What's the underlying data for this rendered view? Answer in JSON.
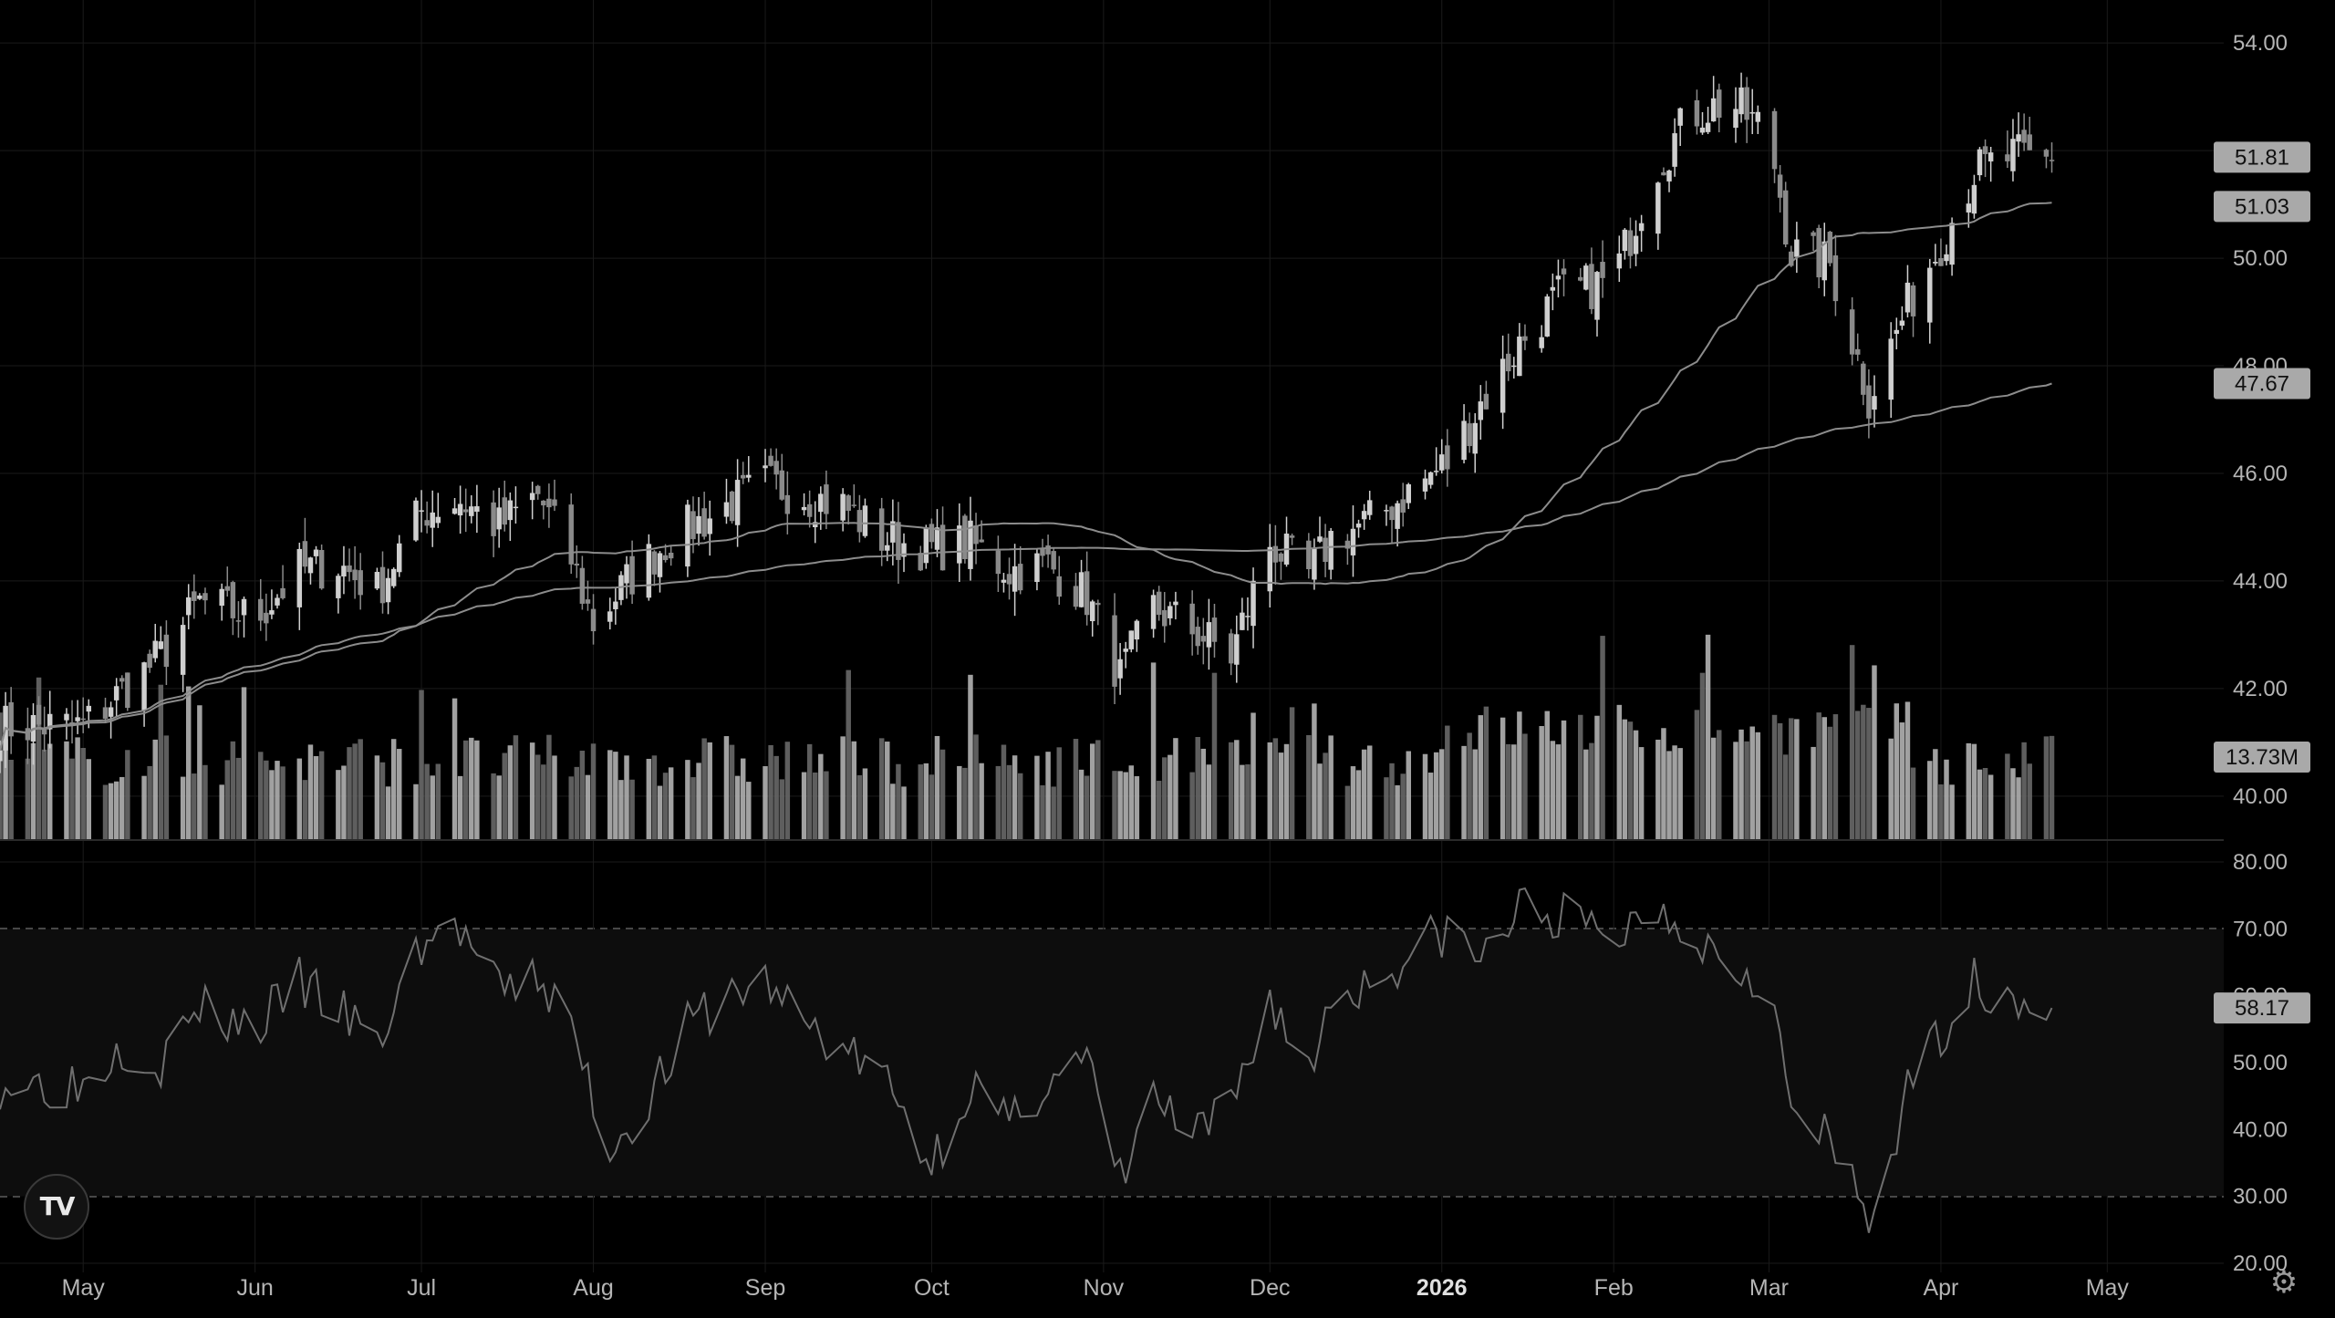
{
  "chart_data": [
    {
      "type": "candlestick",
      "title": "",
      "xlabel": "",
      "ylabel": "",
      "grid": true,
      "theme": "dark",
      "x_ticks": [
        "May",
        "Jun",
        "Jul",
        "Aug",
        "Sep",
        "Oct",
        "Nov",
        "Dec",
        "2026",
        "Feb",
        "Mar",
        "Apr",
        "May"
      ],
      "y_ticks": [
        "54.00",
        "52.00",
        "50.00",
        "48.00",
        "46.00",
        "44.00",
        "42.00",
        "40.00"
      ],
      "ylim": [
        39.2,
        54.8
      ],
      "series": [
        {
          "type": "candlestick",
          "name": "",
          "close_path": [
            {
              "x": "2025-05-01",
              "y": 41.3
            },
            {
              "x": "2025-05-15",
              "y": 42.6
            },
            {
              "x": "2025-05-22",
              "y": 43.6
            },
            {
              "x": "2025-06-01",
              "y": 43.3
            },
            {
              "x": "2025-06-09",
              "y": 44.2
            },
            {
              "x": "2025-06-16",
              "y": 44.3
            },
            {
              "x": "2025-06-23",
              "y": 43.8
            },
            {
              "x": "2025-07-01",
              "y": 45.3
            },
            {
              "x": "2025-07-08",
              "y": 45.5
            },
            {
              "x": "2025-07-15",
              "y": 45.0
            },
            {
              "x": "2025-07-22",
              "y": 45.6
            },
            {
              "x": "2025-07-28",
              "y": 44.4
            },
            {
              "x": "2025-08-01",
              "y": 43.2
            },
            {
              "x": "2025-08-08",
              "y": 44.1
            },
            {
              "x": "2025-08-15",
              "y": 44.8
            },
            {
              "x": "2025-08-22",
              "y": 45.2
            },
            {
              "x": "2025-09-01",
              "y": 45.8
            },
            {
              "x": "2025-09-08",
              "y": 45.6
            },
            {
              "x": "2025-09-15",
              "y": 45.4
            },
            {
              "x": "2025-09-22",
              "y": 44.8
            },
            {
              "x": "2025-10-01",
              "y": 44.6
            },
            {
              "x": "2025-10-08",
              "y": 44.7
            },
            {
              "x": "2025-10-15",
              "y": 44.2
            },
            {
              "x": "2025-10-22",
              "y": 44.3
            },
            {
              "x": "2025-10-29",
              "y": 43.7
            },
            {
              "x": "2025-11-04",
              "y": 42.2
            },
            {
              "x": "2025-11-10",
              "y": 43.5
            },
            {
              "x": "2025-11-17",
              "y": 43.1
            },
            {
              "x": "2025-11-24",
              "y": 42.6
            },
            {
              "x": "2025-12-01",
              "y": 44.7
            },
            {
              "x": "2025-12-08",
              "y": 44.1
            },
            {
              "x": "2025-12-12",
              "y": 44.8
            },
            {
              "x": "2025-12-19",
              "y": 45.1
            },
            {
              "x": "2026-01-02",
              "y": 46.2
            },
            {
              "x": "2026-01-08",
              "y": 47.3
            },
            {
              "x": "2026-01-15",
              "y": 48.4
            },
            {
              "x": "2026-01-22",
              "y": 49.3
            },
            {
              "x": "2026-02-01",
              "y": 49.6
            },
            {
              "x": "2026-02-08",
              "y": 51.6
            },
            {
              "x": "2026-02-15",
              "y": 52.7
            },
            {
              "x": "2026-02-22",
              "y": 52.9
            },
            {
              "x": "2026-03-01",
              "y": 52.3
            },
            {
              "x": "2026-03-05",
              "y": 50.1
            },
            {
              "x": "2026-03-12",
              "y": 49.9
            },
            {
              "x": "2026-03-19",
              "y": 47.4
            },
            {
              "x": "2026-03-26",
              "y": 49.1
            },
            {
              "x": "2026-04-01",
              "y": 50.3
            },
            {
              "x": "2026-04-07",
              "y": 51.6
            },
            {
              "x": "2026-04-14",
              "y": 51.9
            },
            {
              "x": "2026-04-21",
              "y": 51.81
            }
          ],
          "last": 51.81
        },
        {
          "type": "line",
          "name": "",
          "last": 51.03
        },
        {
          "type": "line",
          "name": "",
          "last": 47.67
        }
      ],
      "price_labels": [
        "51.81",
        "51.03",
        "47.67"
      ],
      "volume": {
        "last_label": "13.73M",
        "relative_height": 0.82
      }
    },
    {
      "type": "line",
      "title": "",
      "y_ticks": [
        "80.00",
        "70.00",
        "60.00",
        "50.00",
        "40.00",
        "30.00",
        "20.00"
      ],
      "ylim": [
        20,
        80
      ],
      "band": [
        30,
        70
      ],
      "series": [
        {
          "name": "",
          "points": [
            {
              "x": "2025-05-01",
              "y": 47
            },
            {
              "x": "2025-05-08",
              "y": 53
            },
            {
              "x": "2025-05-15",
              "y": 50
            },
            {
              "x": "2025-05-22",
              "y": 58
            },
            {
              "x": "2025-06-01",
              "y": 55
            },
            {
              "x": "2025-06-09",
              "y": 62
            },
            {
              "x": "2025-06-16",
              "y": 58
            },
            {
              "x": "2025-06-23",
              "y": 52
            },
            {
              "x": "2025-07-01",
              "y": 68
            },
            {
              "x": "2025-07-08",
              "y": 70
            },
            {
              "x": "2025-07-15",
              "y": 60
            },
            {
              "x": "2025-07-22",
              "y": 63
            },
            {
              "x": "2025-07-28",
              "y": 55
            },
            {
              "x": "2025-08-04",
              "y": 37
            },
            {
              "x": "2025-08-11",
              "y": 45
            },
            {
              "x": "2025-08-18",
              "y": 55
            },
            {
              "x": "2025-08-25",
              "y": 60
            },
            {
              "x": "2025-09-01",
              "y": 62
            },
            {
              "x": "2025-09-08",
              "y": 56
            },
            {
              "x": "2025-09-15",
              "y": 52
            },
            {
              "x": "2025-09-22",
              "y": 48
            },
            {
              "x": "2025-10-01",
              "y": 35
            },
            {
              "x": "2025-10-08",
              "y": 47
            },
            {
              "x": "2025-10-15",
              "y": 40
            },
            {
              "x": "2025-10-22",
              "y": 48
            },
            {
              "x": "2025-10-29",
              "y": 50
            },
            {
              "x": "2025-11-04",
              "y": 32
            },
            {
              "x": "2025-11-10",
              "y": 45
            },
            {
              "x": "2025-11-17",
              "y": 38
            },
            {
              "x": "2025-11-24",
              "y": 43
            },
            {
              "x": "2025-12-01",
              "y": 60
            },
            {
              "x": "2025-12-08",
              "y": 48
            },
            {
              "x": "2025-12-12",
              "y": 60
            },
            {
              "x": "2025-12-19",
              "y": 62
            },
            {
              "x": "2026-01-02",
              "y": 70
            },
            {
              "x": "2026-01-08",
              "y": 65
            },
            {
              "x": "2026-01-15",
              "y": 73
            },
            {
              "x": "2026-01-22",
              "y": 72
            },
            {
              "x": "2026-02-01",
              "y": 68
            },
            {
              "x": "2026-02-08",
              "y": 74
            },
            {
              "x": "2026-02-15",
              "y": 70
            },
            {
              "x": "2026-02-22",
              "y": 65
            },
            {
              "x": "2026-03-01",
              "y": 63
            },
            {
              "x": "2026-03-05",
              "y": 42
            },
            {
              "x": "2026-03-12",
              "y": 38
            },
            {
              "x": "2026-03-19",
              "y": 26
            },
            {
              "x": "2026-03-26",
              "y": 45
            },
            {
              "x": "2026-04-01",
              "y": 55
            },
            {
              "x": "2026-04-07",
              "y": 62
            },
            {
              "x": "2026-04-14",
              "y": 60
            },
            {
              "x": "2026-04-21",
              "y": 58.17
            }
          ]
        }
      ],
      "price_labels": [
        "58.17"
      ]
    }
  ],
  "ui": {
    "logo_text": "TV",
    "settings_icon": "gear-icon",
    "colors": {
      "background": "#000000",
      "grid": "#1a1a1a",
      "up": "#cfcfcf",
      "down": "#8a8a8a",
      "text": "#b5b5b5",
      "ma": "#8c8c8c"
    }
  }
}
